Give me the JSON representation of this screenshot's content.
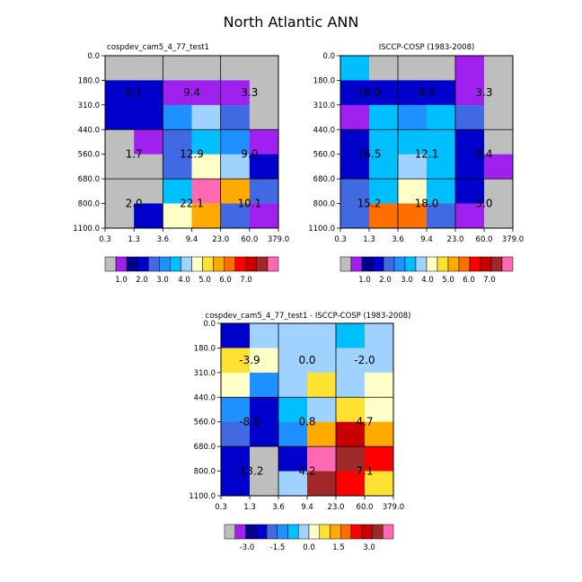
{
  "title": "North Atlantic ANN",
  "chart_data": [
    {
      "type": "heatmap",
      "id": "model",
      "title": "cospdev_cam5_4_77_test1",
      "x_ticks": [
        "0.3",
        "1.3",
        "3.6",
        "9.4",
        "23.0",
        "60.0",
        "379.0"
      ],
      "y_ticks": [
        "0.0",
        "180.0",
        "310.0",
        "440.0",
        "560.0",
        "680.0",
        "800.0",
        "1100.0"
      ],
      "cells": [
        [
          0,
          0,
          0,
          0,
          0,
          0
        ],
        [
          3,
          3,
          1,
          1,
          1,
          0
        ],
        [
          3,
          3,
          5,
          7,
          4,
          0
        ],
        [
          0,
          1,
          4,
          6,
          5,
          1
        ],
        [
          0,
          0,
          4,
          8,
          7,
          3
        ],
        [
          0,
          0,
          6,
          15,
          10,
          4
        ],
        [
          0,
          3,
          8,
          10,
          4,
          1
        ]
      ],
      "labels": [
        {
          "text": "6.1",
          "col": 1,
          "row": 1.5
        },
        {
          "text": "9.4",
          "col": 3,
          "row": 1.5
        },
        {
          "text": "3.3",
          "col": 5,
          "row": 1.5
        },
        {
          "text": "1.7",
          "col": 1,
          "row": 4
        },
        {
          "text": "12.9",
          "col": 3,
          "row": 4
        },
        {
          "text": "9.0",
          "col": 5,
          "row": 4
        },
        {
          "text": "2.0",
          "col": 1,
          "row": 6
        },
        {
          "text": "22.1",
          "col": 3,
          "row": 6
        },
        {
          "text": "10.1",
          "col": 5,
          "row": 6
        }
      ],
      "colorbar_labels": [
        "1.0",
        "2.0",
        "3.0",
        "4.0",
        "5.0",
        "6.0",
        "7.0"
      ]
    },
    {
      "type": "heatmap",
      "id": "obs",
      "title": "ISCCP-COSP (1983-2008)",
      "x_ticks": [
        "0.3",
        "1.3",
        "3.6",
        "9.4",
        "23.0",
        "60.0",
        "379.0"
      ],
      "y_ticks": [
        "0.0",
        "180.0",
        "310.0",
        "440.0",
        "560.0",
        "680.0",
        "800.0",
        "1100.0"
      ],
      "cells": [
        [
          6,
          0,
          0,
          0,
          1,
          0
        ],
        [
          3,
          3,
          3,
          3,
          1,
          0
        ],
        [
          1,
          6,
          5,
          6,
          4,
          0
        ],
        [
          3,
          6,
          6,
          6,
          3,
          0
        ],
        [
          3,
          6,
          7,
          6,
          3,
          1
        ],
        [
          4,
          6,
          8,
          6,
          3,
          0
        ],
        [
          4,
          11,
          11,
          4,
          1,
          0
        ]
      ],
      "labels": [
        {
          "text": "16.0",
          "col": 1,
          "row": 1.5
        },
        {
          "text": "9.4",
          "col": 3,
          "row": 1.5
        },
        {
          "text": "3.3",
          "col": 5,
          "row": 1.5
        },
        {
          "text": "16.5",
          "col": 1,
          "row": 4
        },
        {
          "text": "12.1",
          "col": 3,
          "row": 4
        },
        {
          "text": "9.4",
          "col": 5,
          "row": 4
        },
        {
          "text": "15.2",
          "col": 1,
          "row": 6
        },
        {
          "text": "18.0",
          "col": 3,
          "row": 6
        },
        {
          "text": "3.0",
          "col": 5,
          "row": 6
        }
      ],
      "colorbar_labels": [
        "1.0",
        "2.0",
        "3.0",
        "4.0",
        "5.0",
        "6.0",
        "7.0"
      ]
    },
    {
      "type": "heatmap",
      "id": "diff",
      "title": "cospdev_cam5_4_77_test1 - ISCCP-COSP (1983-2008)",
      "x_ticks": [
        "0.3",
        "1.3",
        "3.6",
        "9.4",
        "23.0",
        "60.0",
        "379.0"
      ],
      "y_ticks": [
        "0.0",
        "180.0",
        "310.0",
        "440.0",
        "560.0",
        "680.0",
        "800.0",
        "1100.0"
      ],
      "cells": [
        [
          3,
          7,
          7,
          7,
          6,
          7
        ],
        [
          9,
          8,
          7,
          7,
          7,
          7
        ],
        [
          8,
          5,
          7,
          9,
          7,
          8
        ],
        [
          5,
          3,
          6,
          7,
          9,
          8
        ],
        [
          4,
          3,
          5,
          10,
          13,
          10
        ],
        [
          3,
          0,
          3,
          15,
          14,
          12
        ],
        [
          3,
          0,
          7,
          14,
          12,
          9
        ]
      ],
      "labels": [
        {
          "text": "-3.9",
          "col": 1,
          "row": 1.5
        },
        {
          "text": "0.0",
          "col": 3,
          "row": 1.5
        },
        {
          "text": "-2.0",
          "col": 5,
          "row": 1.5
        },
        {
          "text": "-8.8",
          "col": 1,
          "row": 4
        },
        {
          "text": "0.8",
          "col": 3,
          "row": 4
        },
        {
          "text": "4.7",
          "col": 5,
          "row": 4
        },
        {
          "text": "-13.2",
          "col": 1,
          "row": 6
        },
        {
          "text": "4.2",
          "col": 3,
          "row": 6
        },
        {
          "text": "7.1",
          "col": 5,
          "row": 6
        }
      ],
      "colorbar_labels": [
        "-3.0",
        "-1.5",
        "0.0",
        "1.5",
        "3.0"
      ]
    }
  ],
  "palette": [
    "#bebebe",
    "#a020f0",
    "#00008b",
    "#0000cd",
    "#4169e1",
    "#1e90ff",
    "#00bfff",
    "#a0d2ff",
    "#ffffc8",
    "#ffe132",
    "#ffaa00",
    "#ff6e00",
    "#ff0000",
    "#c80000",
    "#a02828",
    "#ff69b4"
  ]
}
